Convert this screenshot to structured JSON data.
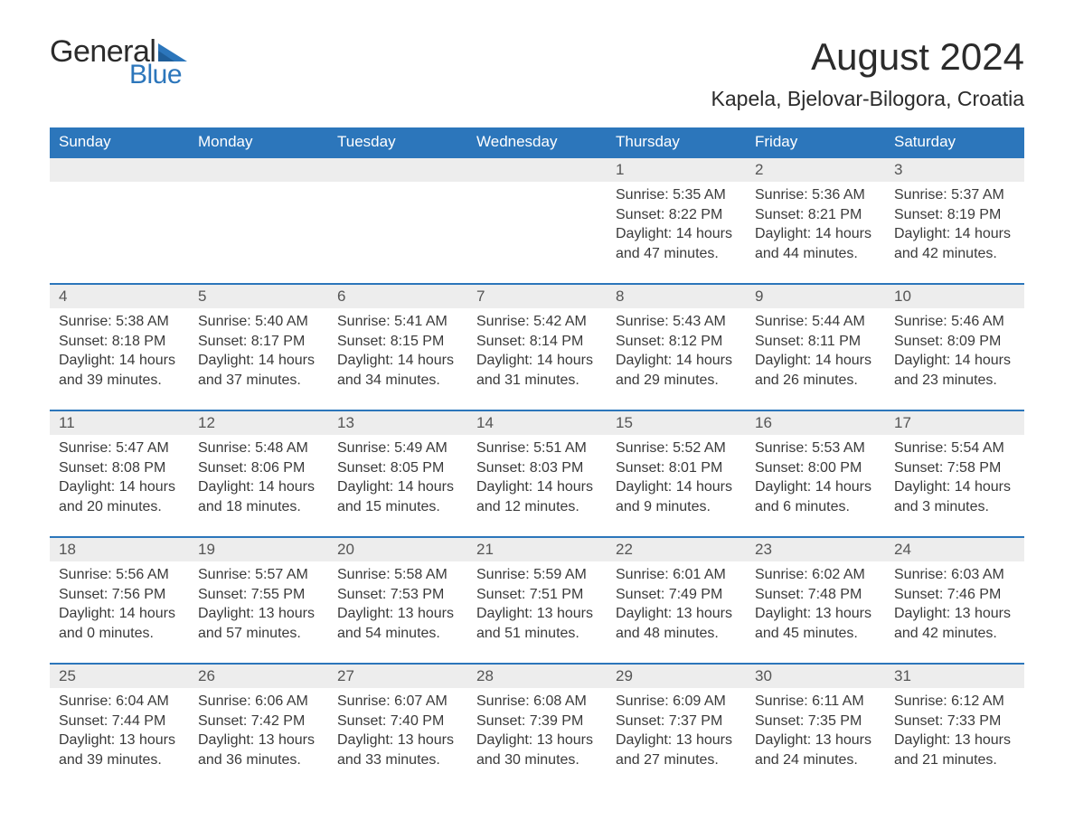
{
  "brand": {
    "word1": "General",
    "word2": "Blue",
    "accent_color": "#2c76bb"
  },
  "title": "August 2024",
  "location": "Kapela, Bjelovar-Bilogora, Croatia",
  "colors": {
    "header_bg": "#2c76bb",
    "header_text": "#ffffff",
    "daynum_bg": "#ededed",
    "row_border": "#2c76bb",
    "body_text": "#3a3a3a",
    "page_bg": "#ffffff"
  },
  "typography": {
    "font_family": "Arial, Helvetica, sans-serif",
    "title_fontsize_pt": 32,
    "location_fontsize_pt": 17,
    "header_fontsize_pt": 13,
    "cell_fontsize_pt": 12
  },
  "calendar": {
    "type": "table",
    "day_headers": [
      "Sunday",
      "Monday",
      "Tuesday",
      "Wednesday",
      "Thursday",
      "Friday",
      "Saturday"
    ],
    "weeks": [
      [
        null,
        null,
        null,
        null,
        {
          "d": "1",
          "sunrise": "5:35 AM",
          "sunset": "8:22 PM",
          "daylight": "14 hours and 47 minutes."
        },
        {
          "d": "2",
          "sunrise": "5:36 AM",
          "sunset": "8:21 PM",
          "daylight": "14 hours and 44 minutes."
        },
        {
          "d": "3",
          "sunrise": "5:37 AM",
          "sunset": "8:19 PM",
          "daylight": "14 hours and 42 minutes."
        }
      ],
      [
        {
          "d": "4",
          "sunrise": "5:38 AM",
          "sunset": "8:18 PM",
          "daylight": "14 hours and 39 minutes."
        },
        {
          "d": "5",
          "sunrise": "5:40 AM",
          "sunset": "8:17 PM",
          "daylight": "14 hours and 37 minutes."
        },
        {
          "d": "6",
          "sunrise": "5:41 AM",
          "sunset": "8:15 PM",
          "daylight": "14 hours and 34 minutes."
        },
        {
          "d": "7",
          "sunrise": "5:42 AM",
          "sunset": "8:14 PM",
          "daylight": "14 hours and 31 minutes."
        },
        {
          "d": "8",
          "sunrise": "5:43 AM",
          "sunset": "8:12 PM",
          "daylight": "14 hours and 29 minutes."
        },
        {
          "d": "9",
          "sunrise": "5:44 AM",
          "sunset": "8:11 PM",
          "daylight": "14 hours and 26 minutes."
        },
        {
          "d": "10",
          "sunrise": "5:46 AM",
          "sunset": "8:09 PM",
          "daylight": "14 hours and 23 minutes."
        }
      ],
      [
        {
          "d": "11",
          "sunrise": "5:47 AM",
          "sunset": "8:08 PM",
          "daylight": "14 hours and 20 minutes."
        },
        {
          "d": "12",
          "sunrise": "5:48 AM",
          "sunset": "8:06 PM",
          "daylight": "14 hours and 18 minutes."
        },
        {
          "d": "13",
          "sunrise": "5:49 AM",
          "sunset": "8:05 PM",
          "daylight": "14 hours and 15 minutes."
        },
        {
          "d": "14",
          "sunrise": "5:51 AM",
          "sunset": "8:03 PM",
          "daylight": "14 hours and 12 minutes."
        },
        {
          "d": "15",
          "sunrise": "5:52 AM",
          "sunset": "8:01 PM",
          "daylight": "14 hours and 9 minutes."
        },
        {
          "d": "16",
          "sunrise": "5:53 AM",
          "sunset": "8:00 PM",
          "daylight": "14 hours and 6 minutes."
        },
        {
          "d": "17",
          "sunrise": "5:54 AM",
          "sunset": "7:58 PM",
          "daylight": "14 hours and 3 minutes."
        }
      ],
      [
        {
          "d": "18",
          "sunrise": "5:56 AM",
          "sunset": "7:56 PM",
          "daylight": "14 hours and 0 minutes."
        },
        {
          "d": "19",
          "sunrise": "5:57 AM",
          "sunset": "7:55 PM",
          "daylight": "13 hours and 57 minutes."
        },
        {
          "d": "20",
          "sunrise": "5:58 AM",
          "sunset": "7:53 PM",
          "daylight": "13 hours and 54 minutes."
        },
        {
          "d": "21",
          "sunrise": "5:59 AM",
          "sunset": "7:51 PM",
          "daylight": "13 hours and 51 minutes."
        },
        {
          "d": "22",
          "sunrise": "6:01 AM",
          "sunset": "7:49 PM",
          "daylight": "13 hours and 48 minutes."
        },
        {
          "d": "23",
          "sunrise": "6:02 AM",
          "sunset": "7:48 PM",
          "daylight": "13 hours and 45 minutes."
        },
        {
          "d": "24",
          "sunrise": "6:03 AM",
          "sunset": "7:46 PM",
          "daylight": "13 hours and 42 minutes."
        }
      ],
      [
        {
          "d": "25",
          "sunrise": "6:04 AM",
          "sunset": "7:44 PM",
          "daylight": "13 hours and 39 minutes."
        },
        {
          "d": "26",
          "sunrise": "6:06 AM",
          "sunset": "7:42 PM",
          "daylight": "13 hours and 36 minutes."
        },
        {
          "d": "27",
          "sunrise": "6:07 AM",
          "sunset": "7:40 PM",
          "daylight": "13 hours and 33 minutes."
        },
        {
          "d": "28",
          "sunrise": "6:08 AM",
          "sunset": "7:39 PM",
          "daylight": "13 hours and 30 minutes."
        },
        {
          "d": "29",
          "sunrise": "6:09 AM",
          "sunset": "7:37 PM",
          "daylight": "13 hours and 27 minutes."
        },
        {
          "d": "30",
          "sunrise": "6:11 AM",
          "sunset": "7:35 PM",
          "daylight": "13 hours and 24 minutes."
        },
        {
          "d": "31",
          "sunrise": "6:12 AM",
          "sunset": "7:33 PM",
          "daylight": "13 hours and 21 minutes."
        }
      ]
    ],
    "labels": {
      "sunrise": "Sunrise:",
      "sunset": "Sunset:",
      "daylight": "Daylight:"
    }
  }
}
